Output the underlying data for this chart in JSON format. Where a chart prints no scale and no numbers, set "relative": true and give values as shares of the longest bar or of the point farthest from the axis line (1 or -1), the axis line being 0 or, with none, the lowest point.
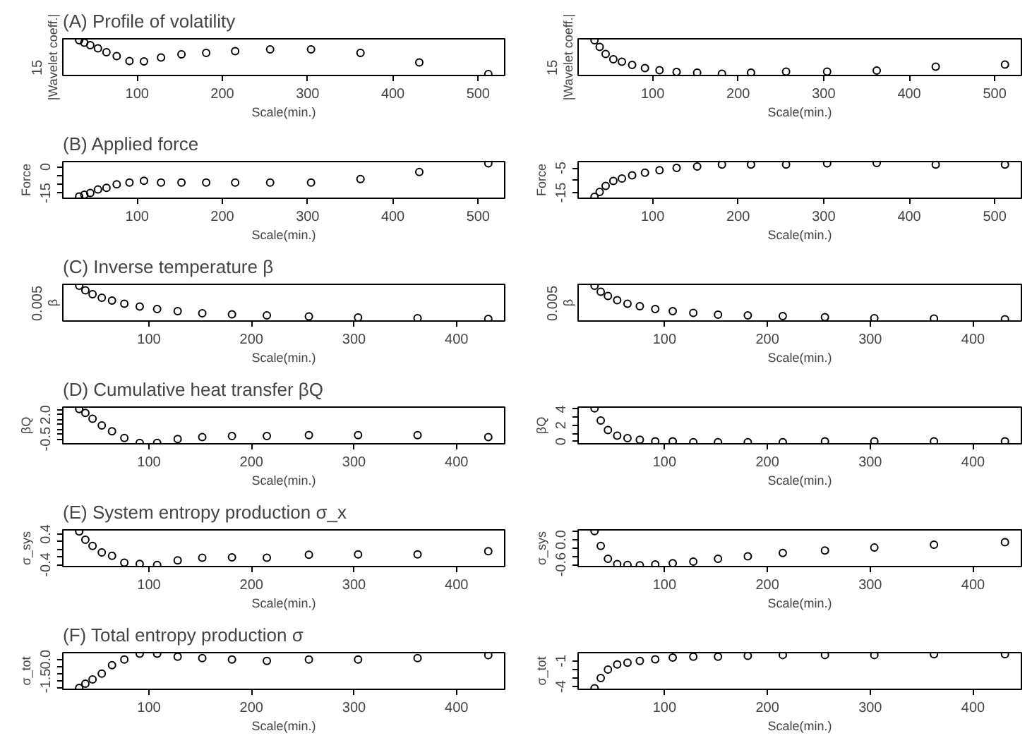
{
  "chart_data": [
    {
      "type": "scatter",
      "title": "(A) Profile of volatility",
      "xlabel": "Scale(min.)",
      "ylabel": "|Wavelet coeff.|",
      "relative": true,
      "annotations": [
        "15"
      ],
      "marker": "circle",
      "color": "#000000",
      "xlim": [
        12.8,
        531.2
      ],
      "xticks": [
        100,
        200,
        300,
        400,
        500
      ],
      "x": [
        32,
        38,
        45,
        54,
        64,
        76,
        91,
        108,
        128,
        152,
        181,
        215,
        256,
        304,
        362,
        431,
        512
      ],
      "values": [
        1,
        0.93,
        0.86,
        0.77,
        0.66,
        0.55,
        0.41,
        0.4,
        0.51,
        0.6,
        0.64,
        0.69,
        0.74,
        0.74,
        0.64,
        0.37,
        0.04
      ]
    },
    {
      "type": "scatter",
      "xlabel": "Scale(min.)",
      "ylabel": "|Wavelet coeff.|",
      "relative": true,
      "annotations": [
        "15"
      ],
      "marker": "circle",
      "color": "#000000",
      "xlim": [
        12.8,
        531.2
      ],
      "xticks": [
        100,
        200,
        300,
        400,
        500
      ],
      "x": [
        32,
        38,
        45,
        54,
        64,
        76,
        91,
        108,
        128,
        152,
        181,
        215,
        256,
        304,
        362,
        431,
        512
      ],
      "values": [
        1,
        0.81,
        0.61,
        0.46,
        0.39,
        0.3,
        0.21,
        0.15,
        0.1,
        0.08,
        0.05,
        0.08,
        0.11,
        0.11,
        0.14,
        0.25,
        0.31
      ]
    },
    {
      "type": "scatter",
      "title": "(B) Applied force",
      "xlabel": "Scale(min.)",
      "ylabel": "Force",
      "marker": "circle",
      "color": "#000000",
      "xlim": [
        12.8,
        531.2
      ],
      "xticks": [
        100,
        200,
        300,
        400,
        500
      ],
      "ylim": [
        -18,
        3
      ],
      "yticks": [
        -15,
        {
          "value": -10,
          "label": null
        },
        {
          "value": -5,
          "label": null
        },
        0
      ],
      "x": [
        32,
        38,
        45,
        54,
        64,
        76,
        91,
        108,
        128,
        152,
        181,
        215,
        256,
        304,
        362,
        431,
        512
      ],
      "values": [
        -17,
        -16,
        -15,
        -13,
        -12,
        -10,
        -9,
        -8,
        -9,
        -9,
        -9,
        -9,
        -9,
        -9,
        -7,
        -3,
        2
      ]
    },
    {
      "type": "scatter",
      "xlabel": "Scale(min.)",
      "ylabel": "Force",
      "marker": "circle",
      "color": "#000000",
      "xlim": [
        12.8,
        531.2
      ],
      "xticks": [
        100,
        200,
        300,
        400,
        500
      ],
      "ylim": [
        -17.3,
        -2.4
      ],
      "yticks": [
        -15,
        {
          "value": -10,
          "label": null
        },
        -5
      ],
      "x": [
        32,
        38,
        45,
        54,
        64,
        76,
        91,
        108,
        128,
        152,
        181,
        215,
        256,
        304,
        362,
        431,
        512
      ],
      "values": [
        -16.7,
        -14.7,
        -12.3,
        -10.3,
        -9.3,
        -8.0,
        -6.9,
        -5.9,
        -5.0,
        -4.4,
        -3.6,
        -3.6,
        -3.6,
        -3.1,
        -3.0,
        -3.6,
        -3.6
      ]
    },
    {
      "type": "scatter",
      "title": "(C) Inverse temperature β",
      "xlabel": "Scale(min.)",
      "ylabel": "β",
      "relative": true,
      "annotations": [
        "0.005"
      ],
      "marker": "circle",
      "color": "#000000",
      "xlim": [
        16,
        447
      ],
      "xticks": [
        100,
        200,
        300,
        400
      ],
      "x": [
        32,
        38,
        45,
        54,
        64,
        76,
        91,
        108,
        128,
        152,
        181,
        215,
        256,
        304,
        362,
        431
      ],
      "values": [
        1,
        0.87,
        0.76,
        0.66,
        0.58,
        0.49,
        0.41,
        0.34,
        0.28,
        0.22,
        0.19,
        0.16,
        0.13,
        0.1,
        0.08,
        0.06
      ]
    },
    {
      "type": "scatter",
      "xlabel": "Scale(min.)",
      "ylabel": "β",
      "relative": true,
      "annotations": [
        "0.005"
      ],
      "marker": "circle",
      "color": "#000000",
      "xlim": [
        16,
        447
      ],
      "xticks": [
        100,
        200,
        300,
        400
      ],
      "x": [
        32,
        38,
        45,
        54,
        64,
        76,
        91,
        108,
        128,
        152,
        181,
        215,
        256,
        304,
        362,
        431
      ],
      "values": [
        1,
        0.83,
        0.71,
        0.59,
        0.49,
        0.42,
        0.34,
        0.28,
        0.23,
        0.18,
        0.16,
        0.14,
        0.11,
        0.08,
        0.07,
        0.05
      ]
    },
    {
      "type": "scatter",
      "title": "(D) Cumulative heat transfer βQ",
      "xlabel": "Scale(min.)",
      "ylabel": "βQ",
      "marker": "circle",
      "color": "#000000",
      "xlim": [
        16,
        447
      ],
      "xticks": [
        100,
        200,
        300,
        400
      ],
      "ylim": [
        -1.0,
        2.8
      ],
      "yticks": [
        -0.5,
        {
          "value": 0,
          "label": null
        },
        {
          "value": 0.5,
          "label": null
        },
        {
          "value": 1,
          "label": null
        },
        {
          "value": 1.5,
          "label": null
        },
        {
          "value": 2,
          "label": "2.0"
        },
        {
          "value": 2.5,
          "label": null
        }
      ],
      "x": [
        32,
        38,
        45,
        54,
        64,
        76,
        91,
        108,
        128,
        152,
        181,
        215,
        256,
        304,
        362,
        431
      ],
      "values": [
        2.6,
        2.2,
        1.6,
        0.9,
        0.3,
        -0.4,
        -0.9,
        -0.9,
        -0.5,
        -0.3,
        -0.2,
        -0.2,
        -0.1,
        -0.1,
        -0.1,
        -0.3
      ]
    },
    {
      "type": "scatter",
      "xlabel": "Scale(min.)",
      "ylabel": "βQ",
      "marker": "circle",
      "color": "#000000",
      "xlim": [
        16,
        447
      ],
      "xticks": [
        100,
        200,
        300,
        400
      ],
      "ylim": [
        -0.3,
        4.26
      ],
      "yticks": [
        0,
        {
          "value": 1,
          "label": null
        },
        2,
        {
          "value": 3,
          "label": null
        },
        4
      ],
      "x": [
        32,
        38,
        45,
        54,
        64,
        76,
        91,
        108,
        128,
        152,
        181,
        215,
        256,
        304,
        362,
        431
      ],
      "values": [
        4.1,
        2.6,
        1.4,
        0.7,
        0.4,
        0.2,
        0,
        0,
        -0.1,
        -0.1,
        -0.1,
        -0.1,
        0,
        0,
        0,
        0
      ]
    },
    {
      "type": "scatter",
      "title": "(E) System entropy production σ_x",
      "xlabel": "Scale(min.)",
      "ylabel": "σ_sys",
      "marker": "circle",
      "color": "#000000",
      "xlim": [
        16,
        447
      ],
      "xticks": [
        100,
        200,
        300,
        400
      ],
      "ylim": [
        -0.45,
        0.51
      ],
      "yticks": [
        -0.4,
        {
          "value": -0.2,
          "label": null
        },
        {
          "value": 0,
          "label": null
        },
        {
          "value": 0.2,
          "label": null
        },
        0.4
      ],
      "x": [
        32,
        38,
        45,
        54,
        64,
        76,
        91,
        108,
        128,
        152,
        181,
        215,
        256,
        304,
        362,
        431
      ],
      "values": [
        0.47,
        0.25,
        0.09,
        -0.08,
        -0.17,
        -0.35,
        -0.38,
        -0.41,
        -0.29,
        -0.22,
        -0.21,
        -0.22,
        -0.14,
        -0.13,
        -0.13,
        -0.05
      ]
    },
    {
      "type": "scatter",
      "xlabel": "Scale(min.)",
      "ylabel": "σ_sys",
      "marker": "circle",
      "color": "#000000",
      "xlim": [
        16,
        447
      ],
      "xticks": [
        100,
        200,
        300,
        400
      ],
      "ylim": [
        -0.65,
        0.24
      ],
      "yticks": [
        -0.6,
        {
          "value": -0.4,
          "label": null
        },
        {
          "value": -0.2,
          "label": null
        },
        {
          "value": 0,
          "label": "0.0"
        },
        {
          "value": 0.2,
          "label": null
        }
      ],
      "x": [
        32,
        38,
        45,
        54,
        64,
        76,
        91,
        108,
        128,
        152,
        181,
        215,
        256,
        304,
        362,
        431
      ],
      "values": [
        0.21,
        -0.15,
        -0.46,
        -0.59,
        -0.61,
        -0.62,
        -0.6,
        -0.57,
        -0.53,
        -0.46,
        -0.4,
        -0.32,
        -0.26,
        -0.19,
        -0.12,
        -0.06
      ]
    },
    {
      "type": "scatter",
      "title": "(F) Total entropy production σ",
      "xlabel": "Scale(min.)",
      "ylabel": "σ_tot",
      "marker": "circle",
      "color": "#000000",
      "xlim": [
        16,
        447
      ],
      "xticks": [
        100,
        200,
        300,
        400
      ],
      "ylim": [
        -2.1,
        0.48
      ],
      "yticks": [
        {
          "value": -2,
          "label": null
        },
        -1.5,
        {
          "value": -1,
          "label": null
        },
        {
          "value": -0.5,
          "label": null
        },
        {
          "value": 0,
          "label": "0.0"
        }
      ],
      "x": [
        32,
        38,
        45,
        54,
        64,
        76,
        91,
        108,
        128,
        152,
        181,
        215,
        256,
        304,
        362,
        431
      ],
      "values": [
        -2.0,
        -1.7,
        -1.4,
        -1.0,
        -0.4,
        0,
        0.4,
        0.4,
        0.2,
        0.1,
        0,
        -0.1,
        0,
        0,
        0.1,
        0.3
      ]
    },
    {
      "type": "scatter",
      "xlabel": "Scale(min.)",
      "ylabel": "σ_tot",
      "marker": "circle",
      "color": "#000000",
      "xlim": [
        16,
        447
      ],
      "xticks": [
        100,
        200,
        300,
        400
      ],
      "ylim": [
        -4.33,
        -0.02
      ],
      "yticks": [
        -4,
        {
          "value": -3,
          "label": null
        },
        {
          "value": -2,
          "label": null
        },
        -1
      ],
      "x": [
        32,
        38,
        45,
        54,
        64,
        76,
        91,
        108,
        128,
        152,
        181,
        215,
        256,
        304,
        362,
        431
      ],
      "values": [
        -4.2,
        -3.0,
        -2.0,
        -1.4,
        -1.2,
        -1.0,
        -0.8,
        -0.6,
        -0.5,
        -0.5,
        -0.4,
        -0.3,
        -0.3,
        -0.3,
        -0.2,
        -0.2
      ]
    }
  ]
}
